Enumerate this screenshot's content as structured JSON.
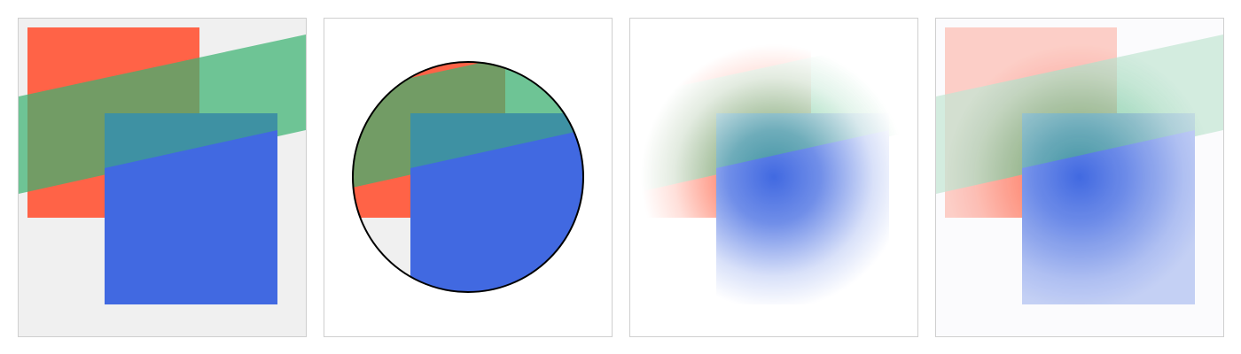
{
  "colors": {
    "red": "#ff6347",
    "green": "#3cb371",
    "blue": "#4169e1",
    "gray_bg": "#f0f0f0",
    "white_bg": "#ffffff",
    "faint_bg": "#fbfbfd",
    "outline": "#000000",
    "panel_border": "#cfcfcf"
  },
  "panels": [
    {
      "variant": "plain"
    },
    {
      "variant": "circle-clip"
    },
    {
      "variant": "radial-mask"
    },
    {
      "variant": "radial-mask-faded"
    }
  ]
}
